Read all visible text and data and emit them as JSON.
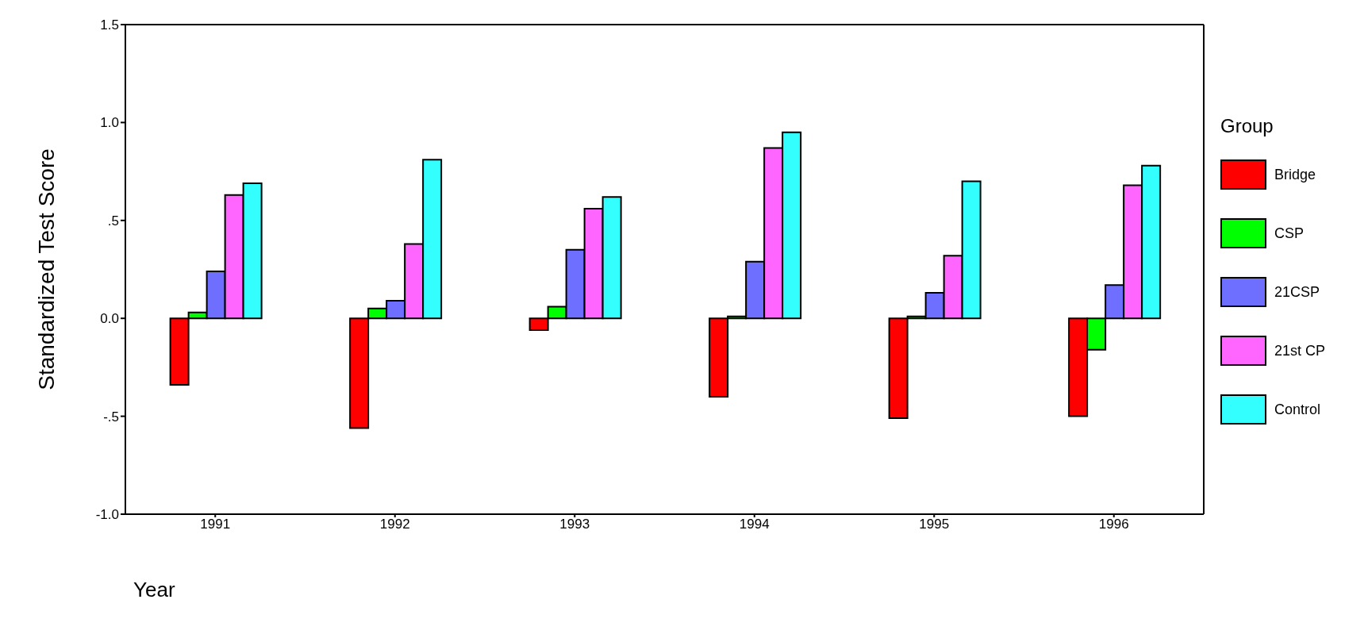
{
  "chart_data": {
    "type": "bar",
    "xlabel": "Year",
    "ylabel": "Standardized Test Score",
    "legend_title": "Group",
    "legend": "right",
    "categories": [
      "1991",
      "1992",
      "1993",
      "1994",
      "1995",
      "1996"
    ],
    "series": [
      {
        "name": "Bridge",
        "color": "#ff0000",
        "values": [
          -0.34,
          -0.56,
          -0.06,
          -0.4,
          -0.51,
          -0.5
        ]
      },
      {
        "name": "CSP",
        "color": "#00ff00",
        "values": [
          0.03,
          0.05,
          0.06,
          0.01,
          0.01,
          -0.16
        ]
      },
      {
        "name": "21CSP",
        "color": "#6f6fff",
        "values": [
          0.24,
          0.09,
          0.35,
          0.29,
          0.13,
          0.17
        ]
      },
      {
        "name": "21st CP",
        "color": "#ff66ff",
        "values": [
          0.63,
          0.38,
          0.56,
          0.87,
          0.32,
          0.68
        ]
      },
      {
        "name": "Control",
        "color": "#33ffff",
        "values": [
          0.69,
          0.81,
          0.62,
          0.95,
          0.7,
          0.78
        ]
      }
    ],
    "ylim": [
      -1.0,
      1.5
    ],
    "yticks": [
      {
        "value": -1.0,
        "label": "-1.0"
      },
      {
        "value": -0.5,
        "label": "-.5"
      },
      {
        "value": 0,
        "label": "0.0"
      },
      {
        "value": 0.5,
        "label": ".5"
      },
      {
        "value": 1.0,
        "label": "1.0"
      },
      {
        "value": 1.5,
        "label": "1.5"
      }
    ],
    "grid": false
  }
}
